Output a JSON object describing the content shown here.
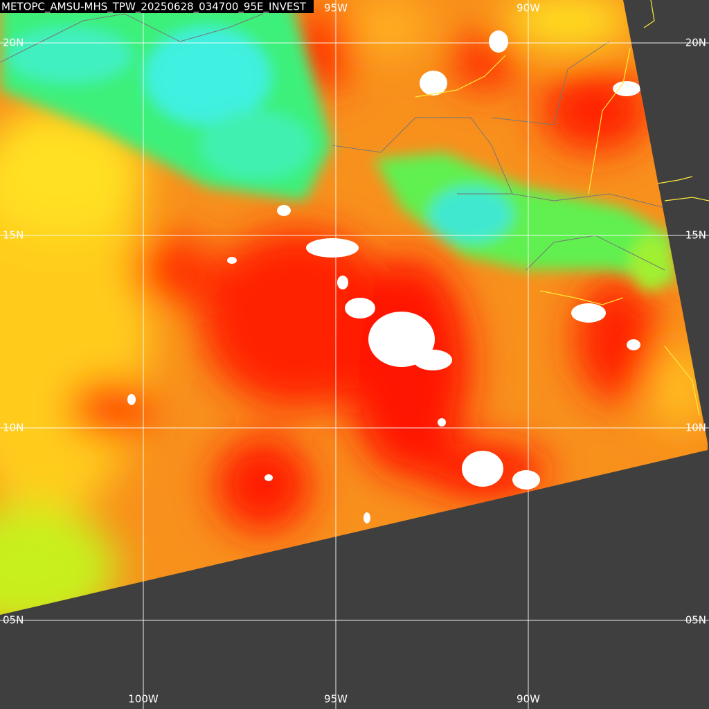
{
  "title": "METOPC_AMSU-MHS_TPW_20250628_034700_95E_INVEST",
  "top_lon_labels": [
    "95W",
    "90W"
  ],
  "bottom_lon_labels": [
    "100W",
    "95W",
    "90W"
  ],
  "left_lat_labels": [
    "20N",
    "15N",
    "10N",
    "05N"
  ],
  "right_lat_labels": [
    "20N",
    "15N",
    "10N",
    "05N"
  ]
}
